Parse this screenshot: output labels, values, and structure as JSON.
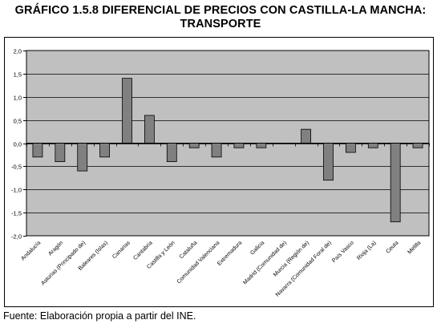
{
  "title_line1": "GRÁFICO 1.5.8 DIFERENCIAL DE PRECIOS CON CASTILLA-LA MANCHA:",
  "title_line2": "TRANSPORTE",
  "source": "Fuente: Elaboración propia a partir del INE.",
  "colors": {
    "plot_background": "#c0c0c0",
    "bar_fill": "#808080",
    "bar_stroke": "#000000",
    "gridline": "#000000"
  },
  "chart_data": {
    "type": "bar",
    "title": "GRÁFICO 1.5.8 DIFERENCIAL DE PRECIOS CON CASTILLA-LA MANCHA: TRANSPORTE",
    "xlabel": "",
    "ylabel": "",
    "ylim": [
      -2.0,
      2.0
    ],
    "yticks": [
      "2,0",
      "1,5",
      "1,0",
      "0,5",
      "0,0",
      "-0,5",
      "-1,0",
      "-1,5",
      "-2,0"
    ],
    "grid": true,
    "legend": "none",
    "categories": [
      "Andalucía",
      "Aragón",
      "Asturias (Principado de)",
      "Baleares (Islas)",
      "Canarias",
      "Cantabria",
      "Castilla y León",
      "Cataluña",
      "Comunidad Valenciana",
      "Extremadura",
      "Galicia",
      "Madrid (Comunidad de)",
      "Murcia (Región de)",
      "Navarra (Comunidad Foral de)",
      "País Vasco",
      "Rioja (La)",
      "Ceuta",
      "Melilla"
    ],
    "values": [
      -0.3,
      -0.4,
      -0.6,
      -0.3,
      1.4,
      0.6,
      -0.4,
      -0.1,
      -0.3,
      -0.1,
      -0.1,
      0.0,
      0.3,
      -0.8,
      -0.2,
      -0.1,
      -1.7,
      -0.1
    ]
  }
}
